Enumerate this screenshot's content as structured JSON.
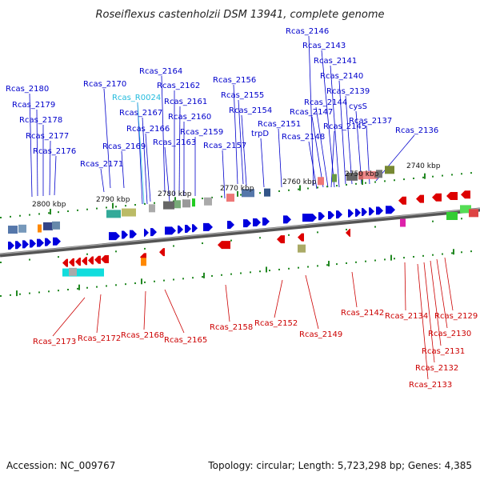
{
  "title": "Roseiflexus castenholzii DSM 13941, complete genome",
  "footer": {
    "accession": "Accession: NC_009767",
    "summary": "Topology: circular; Length: 5,723,298 bp; Genes: 4,385"
  },
  "colors": {
    "forward": "#0000dd",
    "reverse": "#dd0000",
    "rna": "#00aacc",
    "backbone": "#555555",
    "tick": "#228822"
  },
  "ticks": [
    "2800 kbp",
    "2790 kbp",
    "2780 kbp",
    "2770 kbp",
    "2760 kbp",
    "2750 kbp",
    "2740 kbp"
  ],
  "top_labels": [
    {
      "text": "Rcas_2180",
      "kind": "forward"
    },
    {
      "text": "Rcas_2179",
      "kind": "forward"
    },
    {
      "text": "Rcas_2178",
      "kind": "forward"
    },
    {
      "text": "Rcas_2177",
      "kind": "forward"
    },
    {
      "text": "Rcas_2176",
      "kind": "forward"
    },
    {
      "text": "Rcas_2171",
      "kind": "forward"
    },
    {
      "text": "Rcas_2170",
      "kind": "forward"
    },
    {
      "text": "Rcas_2169",
      "kind": "forward"
    },
    {
      "text": "Rcas_R0024",
      "kind": "rna"
    },
    {
      "text": "Rcas_2167",
      "kind": "forward"
    },
    {
      "text": "Rcas_2166",
      "kind": "forward"
    },
    {
      "text": "Rcas_2164",
      "kind": "forward"
    },
    {
      "text": "Rcas_2163",
      "kind": "forward"
    },
    {
      "text": "Rcas_2162",
      "kind": "forward"
    },
    {
      "text": "Rcas_2161",
      "kind": "forward"
    },
    {
      "text": "Rcas_2160",
      "kind": "forward"
    },
    {
      "text": "Rcas_2159",
      "kind": "forward"
    },
    {
      "text": "Rcas_2157",
      "kind": "forward"
    },
    {
      "text": "Rcas_2156",
      "kind": "forward"
    },
    {
      "text": "Rcas_2155",
      "kind": "forward"
    },
    {
      "text": "Rcas_2154",
      "kind": "forward"
    },
    {
      "text": "trpD",
      "kind": "forward"
    },
    {
      "text": "Rcas_2151",
      "kind": "forward"
    },
    {
      "text": "Rcas_2148",
      "kind": "forward"
    },
    {
      "text": "Rcas_2147",
      "kind": "forward"
    },
    {
      "text": "Rcas_2146",
      "kind": "forward"
    },
    {
      "text": "Rcas_2145",
      "kind": "forward"
    },
    {
      "text": "Rcas_2144",
      "kind": "forward"
    },
    {
      "text": "Rcas_2143",
      "kind": "forward"
    },
    {
      "text": "Rcas_2141",
      "kind": "forward"
    },
    {
      "text": "Rcas_2140",
      "kind": "forward"
    },
    {
      "text": "Rcas_2139",
      "kind": "forward"
    },
    {
      "text": "cysS",
      "kind": "forward"
    },
    {
      "text": "Rcas_2137",
      "kind": "forward"
    },
    {
      "text": "Rcas_2136",
      "kind": "forward"
    }
  ],
  "bottom_labels": [
    {
      "text": "Rcas_2173",
      "kind": "reverse"
    },
    {
      "text": "Rcas_2172",
      "kind": "reverse"
    },
    {
      "text": "Rcas_2168",
      "kind": "reverse"
    },
    {
      "text": "Rcas_2165",
      "kind": "reverse"
    },
    {
      "text": "Rcas_2158",
      "kind": "reverse"
    },
    {
      "text": "Rcas_2152",
      "kind": "reverse"
    },
    {
      "text": "Rcas_2149",
      "kind": "reverse"
    },
    {
      "text": "Rcas_2142",
      "kind": "reverse"
    },
    {
      "text": "Rcas_2134",
      "kind": "reverse"
    },
    {
      "text": "Rcas_2129",
      "kind": "reverse"
    },
    {
      "text": "Rcas_2130",
      "kind": "reverse"
    },
    {
      "text": "Rcas_2131",
      "kind": "reverse"
    },
    {
      "text": "Rcas_2132",
      "kind": "reverse"
    },
    {
      "text": "Rcas_2133",
      "kind": "reverse"
    }
  ]
}
